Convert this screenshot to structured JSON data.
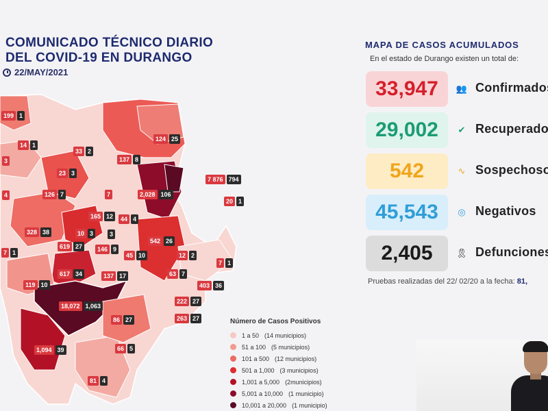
{
  "header": {
    "title_line1": "COMUNICADO TÉCNICO DIARIO",
    "title_line2": "DEL COVID-19 EN DURANGO",
    "date": "22/MAY/2021"
  },
  "map_labels": [
    {
      "a": "199",
      "b": "1"
    },
    {
      "a": "14",
      "b": "1"
    },
    {
      "a": "33",
      "b": "2"
    },
    {
      "a": "124",
      "b": "25"
    },
    {
      "a": "3",
      "b": ""
    },
    {
      "a": "137",
      "b": "8"
    },
    {
      "a": "23",
      "b": "3"
    },
    {
      "a": "7 876",
      "b": "794"
    },
    {
      "a": "4",
      "b": ""
    },
    {
      "a": "126",
      "b": "7"
    },
    {
      "a": "7",
      "b": ""
    },
    {
      "a": "2,028",
      "b": "106"
    },
    {
      "a": "20",
      "b": "1"
    },
    {
      "a": "165",
      "b": "12"
    },
    {
      "a": "44",
      "b": "4"
    },
    {
      "a": "328",
      "b": "38"
    },
    {
      "a": "10",
      "b": "3"
    },
    {
      "a": "3",
      "b": ""
    },
    {
      "a": "542",
      "b": "26"
    },
    {
      "a": "7",
      "b": "1"
    },
    {
      "a": "619",
      "b": "27"
    },
    {
      "a": "146",
      "b": "9"
    },
    {
      "a": "45",
      "b": "10"
    },
    {
      "a": "12",
      "b": "2"
    },
    {
      "a": "7",
      "b": "1"
    },
    {
      "a": "617",
      "b": "34"
    },
    {
      "a": "137",
      "b": "17"
    },
    {
      "a": "63",
      "b": "7"
    },
    {
      "a": "119",
      "b": "10"
    },
    {
      "a": "403",
      "b": "36"
    },
    {
      "a": "18,072",
      "b": "1,063"
    },
    {
      "a": "222",
      "b": "27"
    },
    {
      "a": "86",
      "b": "27"
    },
    {
      "a": "263",
      "b": "27"
    },
    {
      "a": "1,094",
      "b": "39"
    },
    {
      "a": "66",
      "b": "5"
    },
    {
      "a": "81",
      "b": "4"
    }
  ],
  "legend": {
    "title": "Número de Casos Positivos",
    "items": [
      {
        "label": "1 a 50",
        "note": "(14 municipios)",
        "color": "#f6c9c4"
      },
      {
        "label": "51 a 100",
        "note": "(5 municipios)",
        "color": "#f39a90"
      },
      {
        "label": "101 a 500",
        "note": "(12 municipios)",
        "color": "#ec6b62"
      },
      {
        "label": "501 a 1,000",
        "note": "(3 municipios)",
        "color": "#dc2f2f"
      },
      {
        "label": "1,001 a 5,000",
        "note": "(2municipios)",
        "color": "#b31226"
      },
      {
        "label": "5,001 a 10,000",
        "note": "(1 municipio)",
        "color": "#8c0c2a"
      },
      {
        "label": "10,001 a 20,000",
        "note": "(1 municipio)",
        "color": "#5a0a22"
      }
    ]
  },
  "summary": {
    "title": "MAPA DE CASOS ACUMULADOS",
    "subtitle": "En el estado de Durango existen un total de:",
    "stats": [
      {
        "value": "33,947",
        "label": "Confirmados",
        "icon": "people-icon",
        "icon_glyph": "👥",
        "bg": "#f9d4d6",
        "color": "#d61f2c"
      },
      {
        "value": "29,002",
        "label": "Recuperados",
        "icon": "shield-check-icon",
        "icon_glyph": "✔",
        "bg": "#dff4ec",
        "color": "#1c9c74"
      },
      {
        "value": "542",
        "label": "Sospechosos",
        "icon": "pulse-icon",
        "icon_glyph": "∿",
        "bg": "#fdecc4",
        "color": "#f0a51b"
      },
      {
        "value": "45,543",
        "label": "Negativos",
        "icon": "check-circle-icon",
        "icon_glyph": "◎",
        "bg": "#d9eefb",
        "color": "#2f9ed8"
      },
      {
        "value": "2,405",
        "label": "Defunciones",
        "icon": "ribbon-icon",
        "icon_glyph": "🎗",
        "bg": "#dcdcdc",
        "color": "#1a1a1a"
      }
    ],
    "tests_text": "Pruebas realizadas del 22/ 02/20 a la fecha:",
    "tests_value": "81,"
  }
}
